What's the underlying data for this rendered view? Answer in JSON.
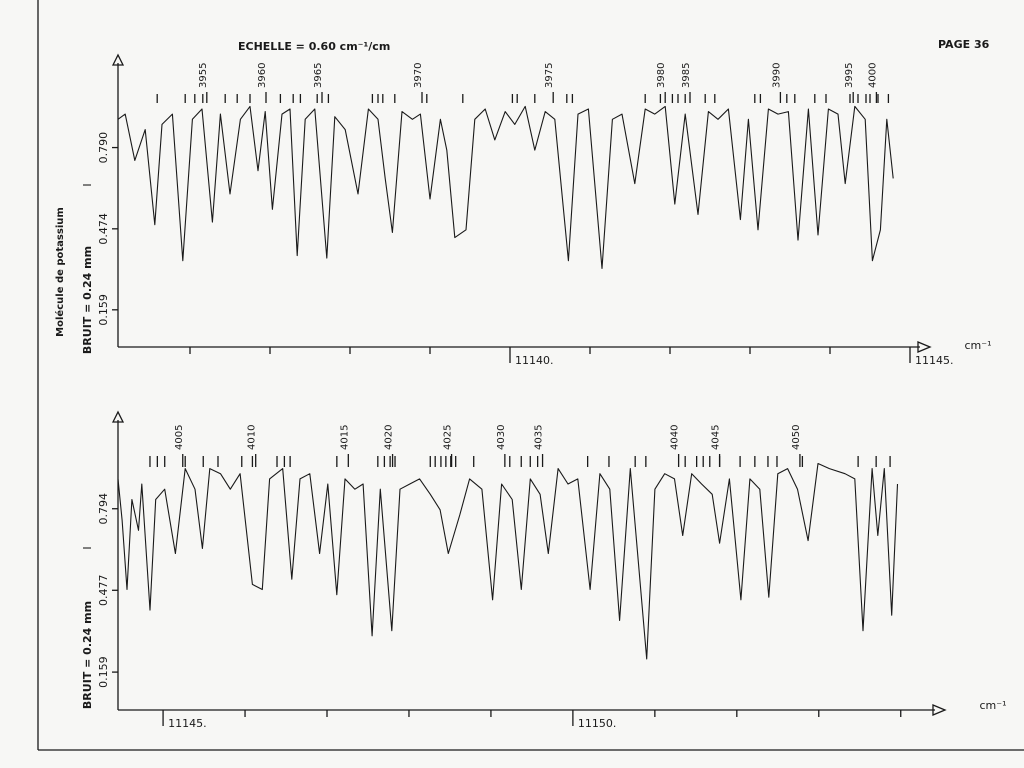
{
  "header": {
    "scale": "ECHELLE = 0.60 cm⁻¹/cm",
    "page": "PAGE 36",
    "side_label": "Molécule de potassium"
  },
  "chart_data": [
    {
      "type": "line",
      "ylabel": "BRUIT = 0.24 mm",
      "intensity_symbol": "I",
      "x_unit": "cm⁻¹",
      "xlim": [
        11135.1,
        11145.25
      ],
      "ylim": [
        0,
        1.15
      ],
      "xticks": [
        {
          "value": 11140,
          "label": "11140."
        },
        {
          "value": 11145,
          "label": "11145."
        }
      ],
      "xminor_ticks": [
        11136,
        11137,
        11138,
        11139,
        11141,
        11142,
        11143,
        11144
      ],
      "yticks": [
        0.159,
        0.474,
        {
          "value": 0.79,
          "label": "0.790"
        }
      ],
      "series": [
        {
          "color": "#1a1a1a",
          "x": [
            11135.1,
            11135.19,
            11135.31,
            11135.44,
            11135.56,
            11135.65,
            11135.78,
            11135.91,
            11136.03,
            11136.15,
            11136.28,
            11136.38,
            11136.5,
            11136.63,
            11136.75,
            11136.85,
            11136.94,
            11137.03,
            11137.15,
            11137.25,
            11137.34,
            11137.44,
            11137.56,
            11137.71,
            11137.81,
            11137.94,
            11138.1,
            11138.23,
            11138.35,
            11138.44,
            11138.53,
            11138.65,
            11138.78,
            11138.88,
            11139.0,
            11139.13,
            11139.21,
            11139.31,
            11139.45,
            11139.56,
            11139.69,
            11139.81,
            11139.94,
            11140.06,
            11140.19,
            11140.31,
            11140.44,
            11140.56,
            11140.73,
            11140.85,
            11140.98,
            11141.15,
            11141.28,
            11141.4,
            11141.56,
            11141.69,
            11141.81,
            11141.94,
            11142.06,
            11142.19,
            11142.35,
            11142.48,
            11142.6,
            11142.73,
            11142.88,
            11142.98,
            11143.1,
            11143.23,
            11143.35,
            11143.48,
            11143.6,
            11143.73,
            11143.85,
            11143.98,
            11144.1,
            11144.19,
            11144.31,
            11144.44,
            11144.53,
            11144.63,
            11144.71,
            11144.79
          ],
          "values": [
            0.9,
            0.92,
            0.74,
            0.86,
            0.49,
            0.88,
            0.92,
            0.35,
            0.9,
            0.94,
            0.5,
            0.92,
            0.61,
            0.9,
            0.95,
            0.7,
            0.93,
            0.55,
            0.92,
            0.94,
            0.37,
            0.9,
            0.94,
            0.36,
            0.91,
            0.86,
            0.61,
            0.94,
            0.9,
            0.67,
            0.46,
            0.93,
            0.9,
            0.92,
            0.59,
            0.9,
            0.78,
            0.44,
            0.47,
            0.9,
            0.94,
            0.82,
            0.93,
            0.88,
            0.95,
            0.78,
            0.93,
            0.9,
            0.35,
            0.92,
            0.94,
            0.32,
            0.9,
            0.92,
            0.65,
            0.94,
            0.92,
            0.95,
            0.57,
            0.92,
            0.53,
            0.93,
            0.9,
            0.94,
            0.51,
            0.9,
            0.47,
            0.94,
            0.92,
            0.93,
            0.43,
            0.94,
            0.45,
            0.94,
            0.92,
            0.65,
            0.95,
            0.9,
            0.35,
            0.47,
            0.9,
            0.67
          ]
        }
      ],
      "line_labels": {
        "x": [
          11136.21,
          11136.95,
          11137.65,
          11138.9,
          11140.54,
          11141.94,
          11142.25,
          11143.38,
          11144.29,
          11144.58
        ],
        "labels": [
          3955,
          3960,
          3965,
          3970,
          3975,
          3980,
          3985,
          3990,
          3995,
          4000
        ]
      },
      "line_markers": [
        11135.59,
        11135.94,
        11136.06,
        11136.16,
        11136.44,
        11136.59,
        11136.75,
        11137.13,
        11137.29,
        11137.38,
        11137.59,
        11137.73,
        11138.28,
        11138.35,
        11138.41,
        11138.56,
        11138.96,
        11139.41,
        11140.03,
        11140.09,
        11140.31,
        11140.71,
        11140.78,
        11141.69,
        11141.88,
        11142.03,
        11142.1,
        11142.19,
        11142.44,
        11142.56,
        11143.06,
        11143.13,
        11143.46,
        11143.56,
        11143.81,
        11143.95,
        11144.25,
        11144.35,
        11144.45,
        11144.5,
        11144.6,
        11144.73
      ]
    },
    {
      "type": "line",
      "ylabel": "BRUIT = 0.24 mm",
      "intensity_symbol": "I",
      "x_unit": "cm⁻¹",
      "xlim": [
        11144.45,
        11154.54
      ],
      "ylim": [
        0,
        1.17
      ],
      "xticks": [
        {
          "value": 11145,
          "label": "11145."
        },
        {
          "value": 11150,
          "label": "11150."
        }
      ],
      "xminor_ticks": [
        11146,
        11147,
        11148,
        11149,
        11151,
        11152,
        11153,
        11154
      ],
      "yticks": [
        0.159,
        0.477,
        0.794
      ],
      "series": [
        {
          "color": "#1a1a1a",
          "x": [
            11144.45,
            11144.5,
            11144.56,
            11144.62,
            11144.7,
            11144.74,
            11144.84,
            11144.91,
            11145.02,
            11145.15,
            11145.27,
            11145.39,
            11145.48,
            11145.57,
            11145.7,
            11145.82,
            11145.94,
            11146.09,
            11146.21,
            11146.3,
            11146.46,
            11146.57,
            11146.67,
            11146.79,
            11146.91,
            11147.01,
            11147.12,
            11147.22,
            11147.34,
            11147.44,
            11147.55,
            11147.65,
            11147.79,
            11147.89,
            11148.01,
            11148.13,
            11148.26,
            11148.38,
            11148.48,
            11148.62,
            11148.74,
            11148.89,
            11149.02,
            11149.13,
            11149.26,
            11149.37,
            11149.48,
            11149.6,
            11149.7,
            11149.82,
            11149.94,
            11150.06,
            11150.21,
            11150.33,
            11150.45,
            11150.57,
            11150.7,
            11150.9,
            11151.0,
            11151.12,
            11151.24,
            11151.34,
            11151.45,
            11151.57,
            11151.7,
            11151.79,
            11151.91,
            11152.05,
            11152.16,
            11152.28,
            11152.39,
            11152.5,
            11152.62,
            11152.74,
            11152.87,
            11152.99,
            11153.13,
            11153.32,
            11153.44,
            11153.54,
            11153.65,
            11153.72,
            11153.8,
            11153.89,
            11153.96
          ],
          "values": [
            0.91,
            0.75,
            0.48,
            0.83,
            0.71,
            0.89,
            0.4,
            0.83,
            0.87,
            0.62,
            0.95,
            0.87,
            0.64,
            0.95,
            0.93,
            0.87,
            0.93,
            0.5,
            0.48,
            0.91,
            0.95,
            0.52,
            0.91,
            0.93,
            0.62,
            0.89,
            0.46,
            0.91,
            0.87,
            0.89,
            0.3,
            0.87,
            0.32,
            0.87,
            0.89,
            0.91,
            0.85,
            0.79,
            0.62,
            0.77,
            0.91,
            0.87,
            0.44,
            0.89,
            0.83,
            0.48,
            0.91,
            0.85,
            0.62,
            0.95,
            0.89,
            0.91,
            0.48,
            0.93,
            0.87,
            0.36,
            0.95,
            0.21,
            0.87,
            0.93,
            0.91,
            0.69,
            0.93,
            0.89,
            0.85,
            0.66,
            0.91,
            0.44,
            0.91,
            0.87,
            0.45,
            0.93,
            0.95,
            0.87,
            0.67,
            0.97,
            0.95,
            0.93,
            0.91,
            0.32,
            0.95,
            0.69,
            0.95,
            0.38,
            0.89
          ]
        }
      ],
      "line_labels": {
        "x": [
          11145.24,
          11146.13,
          11147.26,
          11147.8,
          11148.52,
          11149.17,
          11149.63,
          11151.29,
          11151.79,
          11152.77
        ],
        "labels": [
          4005,
          4010,
          4015,
          4020,
          4025,
          4030,
          4035,
          4040,
          4045,
          4050
        ]
      },
      "line_markers": [
        11144.84,
        11144.93,
        11145.02,
        11145.27,
        11145.49,
        11145.67,
        11145.96,
        11146.09,
        11146.39,
        11146.48,
        11146.55,
        11147.12,
        11147.62,
        11147.7,
        11147.77,
        11147.83,
        11148.26,
        11148.32,
        11148.39,
        11148.45,
        11148.51,
        11148.57,
        11148.79,
        11149.23,
        11149.37,
        11149.48,
        11149.57,
        11150.18,
        11150.44,
        11150.76,
        11150.89,
        11151.37,
        11151.51,
        11151.59,
        11151.67,
        11151.79,
        11152.04,
        11152.22,
        11152.38,
        11152.49,
        11152.8,
        11153.48,
        11153.7,
        11153.87
      ]
    }
  ]
}
